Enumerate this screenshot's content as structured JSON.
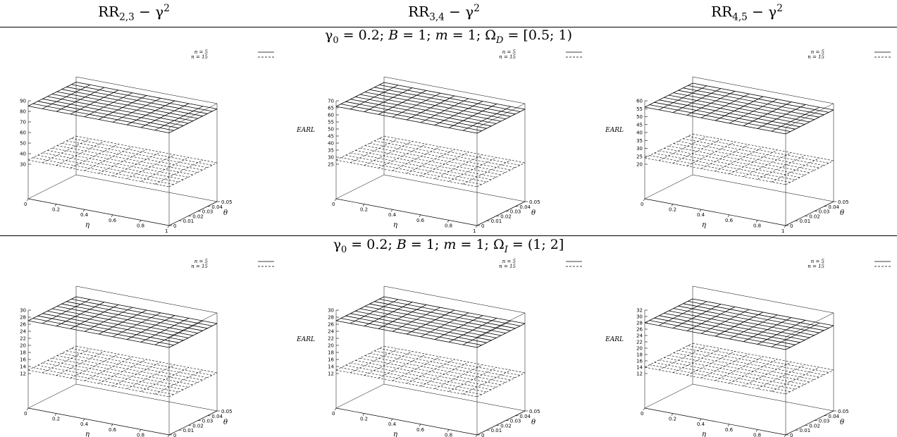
{
  "columns": [
    {
      "base": "RR",
      "sub": "2,3",
      "rest": " − γ",
      "sup": "2"
    },
    {
      "base": "RR",
      "sub": "3,4",
      "rest": " − γ",
      "sup": "2"
    },
    {
      "base": "RR",
      "sub": "4,5",
      "rest": " − γ",
      "sup": "2"
    }
  ],
  "rows": [
    {
      "condition": {
        "g": "γ",
        "g_sub": "0",
        "a": " = 0.2; ",
        "b": "B",
        "c": " = 1; ",
        "m": "m",
        "d": " = 1; Ω",
        "o_sub": "D",
        "e": " = [0.5; 1)"
      }
    },
    {
      "condition": {
        "g": "γ",
        "g_sub": "0",
        "a": " = 0.2; ",
        "b": "B",
        "c": " = 1; ",
        "m": "m",
        "d": " = 1; Ω",
        "o_sub": "I",
        "e": " = (1; 2]"
      }
    }
  ],
  "labels": {
    "z": "EARL",
    "x": "η",
    "y": "θ"
  },
  "chart_data": [
    {
      "type": "surface",
      "row": 0,
      "col": 0,
      "zlabel": "",
      "xlabel": "η",
      "ylabel": "θ",
      "x_ticks": [
        0,
        0.2,
        0.4,
        0.6,
        0.8,
        1
      ],
      "y_ticks": [
        0,
        0.01,
        0.02,
        0.03,
        0.04,
        0.05
      ],
      "z_ticks": [
        30,
        40,
        50,
        60,
        70,
        80,
        90
      ],
      "zlim": [
        30,
        90
      ],
      "series": [
        {
          "name": "n = 5",
          "style": "solid",
          "z": 85
        },
        {
          "name": "n = 15",
          "style": "dashed",
          "z": 34
        }
      ]
    },
    {
      "type": "surface",
      "row": 0,
      "col": 1,
      "zlabel": "EARL",
      "xlabel": "η",
      "ylabel": "θ",
      "x_ticks": [
        0,
        0.2,
        0.4,
        0.6,
        0.8,
        1
      ],
      "y_ticks": [
        0,
        0.01,
        0.02,
        0.03,
        0.04,
        0.05
      ],
      "z_ticks": [
        25,
        30,
        35,
        40,
        45,
        50,
        55,
        60,
        65,
        70
      ],
      "zlim": [
        25,
        70
      ],
      "series": [
        {
          "name": "n = 5",
          "style": "solid",
          "z": 66
        },
        {
          "name": "n = 15",
          "style": "dashed",
          "z": 28
        }
      ]
    },
    {
      "type": "surface",
      "row": 0,
      "col": 2,
      "zlabel": "EARL",
      "xlabel": "η",
      "ylabel": "θ",
      "x_ticks": [
        0,
        0.2,
        0.4,
        0.6,
        0.8,
        1
      ],
      "y_ticks": [
        0,
        0.01,
        0.02,
        0.03,
        0.04,
        0.05
      ],
      "z_ticks": [
        20,
        25,
        30,
        35,
        40,
        45,
        50,
        55,
        60
      ],
      "zlim": [
        20,
        60
      ],
      "series": [
        {
          "name": "n = 5",
          "style": "solid",
          "z": 56
        },
        {
          "name": "n = 15",
          "style": "dashed",
          "z": 24
        }
      ]
    },
    {
      "type": "surface",
      "row": 1,
      "col": 0,
      "zlabel": "",
      "xlabel": "η",
      "ylabel": "θ",
      "x_ticks": [
        0,
        0.2,
        0.4,
        0.6,
        0.8,
        1
      ],
      "y_ticks": [
        0,
        0.01,
        0.02,
        0.03,
        0.04,
        0.05
      ],
      "z_ticks": [
        12,
        14,
        16,
        18,
        20,
        22,
        24,
        26,
        28,
        30
      ],
      "zlim": [
        12,
        30
      ],
      "series": [
        {
          "name": "n = 5",
          "style": "solid",
          "z": 27
        },
        {
          "name": "n = 15",
          "style": "dashed",
          "z": 13
        }
      ]
    },
    {
      "type": "surface",
      "row": 1,
      "col": 1,
      "zlabel": "EARL",
      "xlabel": "η",
      "ylabel": "θ",
      "x_ticks": [
        0,
        0.2,
        0.4,
        0.6,
        0.8,
        1
      ],
      "y_ticks": [
        0,
        0.01,
        0.02,
        0.03,
        0.04,
        0.05
      ],
      "z_ticks": [
        12,
        14,
        16,
        18,
        20,
        22,
        24,
        26,
        28,
        30
      ],
      "zlim": [
        12,
        30
      ],
      "series": [
        {
          "name": "n = 5",
          "style": "solid",
          "z": 27
        },
        {
          "name": "n = 15",
          "style": "dashed",
          "z": 13
        }
      ]
    },
    {
      "type": "surface",
      "row": 1,
      "col": 2,
      "zlabel": "EARL",
      "xlabel": "η",
      "ylabel": "θ",
      "x_ticks": [
        0,
        0.2,
        0.4,
        0.6,
        0.8,
        1
      ],
      "y_ticks": [
        0,
        0.01,
        0.02,
        0.03,
        0.04,
        0.05
      ],
      "z_ticks": [
        12,
        14,
        16,
        18,
        20,
        22,
        24,
        26,
        28,
        30,
        32
      ],
      "zlim": [
        12,
        32
      ],
      "series": [
        {
          "name": "n = 5",
          "style": "solid",
          "z": 28
        },
        {
          "name": "n = 15",
          "style": "dashed",
          "z": 14
        }
      ]
    }
  ]
}
